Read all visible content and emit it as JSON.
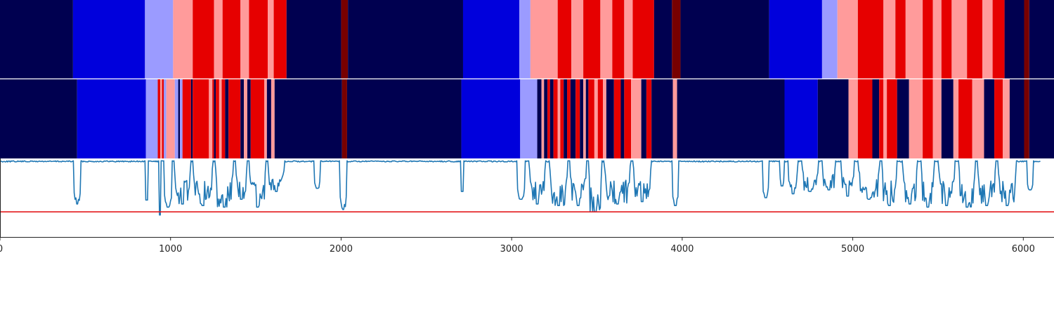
{
  "chart_data": {
    "type": "heatmap",
    "title": "",
    "xlabel": "",
    "ylabel": "",
    "xlim": [
      0,
      6180
    ],
    "xticks": [
      0,
      1000,
      2000,
      3000,
      4000,
      5000,
      6000
    ],
    "xtick_labels": [
      "0",
      "1000",
      "2000",
      "3000",
      "4000",
      "5000",
      "6000"
    ],
    "grid": false,
    "legend": "none",
    "colors": {
      "0": "#000050",
      "1": "#0000dc",
      "2": "#9b9bff",
      "3": "#ff9b9b",
      "4": "#e60000",
      "5": "#780000",
      "signal_line": "#1f77b4",
      "threshold_line": "#e31a1c",
      "panel_divider": "#ffffff",
      "axis": "#222222"
    },
    "strip_top": {
      "segments": [
        [
          0,
          428,
          0
        ],
        [
          428,
          850,
          1
        ],
        [
          850,
          1015,
          2
        ],
        [
          1015,
          1130,
          3
        ],
        [
          1130,
          1255,
          4
        ],
        [
          1255,
          1305,
          3
        ],
        [
          1305,
          1410,
          4
        ],
        [
          1410,
          1460,
          3
        ],
        [
          1460,
          1570,
          4
        ],
        [
          1570,
          1605,
          3
        ],
        [
          1605,
          1680,
          4
        ],
        [
          1680,
          2000,
          0
        ],
        [
          2000,
          2040,
          5
        ],
        [
          2040,
          2715,
          0
        ],
        [
          2715,
          3045,
          1
        ],
        [
          3045,
          3110,
          2
        ],
        [
          3110,
          3270,
          3
        ],
        [
          3270,
          3350,
          4
        ],
        [
          3350,
          3420,
          3
        ],
        [
          3420,
          3520,
          4
        ],
        [
          3520,
          3590,
          3
        ],
        [
          3590,
          3660,
          4
        ],
        [
          3660,
          3710,
          3
        ],
        [
          3710,
          3835,
          4
        ],
        [
          3835,
          3940,
          0
        ],
        [
          3940,
          3990,
          5
        ],
        [
          3990,
          4510,
          0
        ],
        [
          4510,
          4820,
          1
        ],
        [
          4820,
          4910,
          2
        ],
        [
          4910,
          5030,
          3
        ],
        [
          5030,
          5180,
          4
        ],
        [
          5180,
          5250,
          3
        ],
        [
          5250,
          5310,
          4
        ],
        [
          5310,
          5410,
          3
        ],
        [
          5410,
          5470,
          4
        ],
        [
          5470,
          5520,
          3
        ],
        [
          5520,
          5580,
          4
        ],
        [
          5580,
          5670,
          3
        ],
        [
          5670,
          5760,
          4
        ],
        [
          5760,
          5820,
          3
        ],
        [
          5820,
          5890,
          4
        ],
        [
          5890,
          6005,
          0
        ],
        [
          6005,
          6035,
          5
        ],
        [
          6035,
          6180,
          0
        ]
      ]
    },
    "strip_bottom": {
      "segments": [
        [
          0,
          452,
          0
        ],
        [
          452,
          855,
          1
        ],
        [
          855,
          925,
          2
        ],
        [
          925,
          940,
          4
        ],
        [
          940,
          950,
          3
        ],
        [
          950,
          960,
          4
        ],
        [
          960,
          975,
          2
        ],
        [
          975,
          1025,
          3
        ],
        [
          1025,
          1045,
          2
        ],
        [
          1045,
          1055,
          0
        ],
        [
          1055,
          1070,
          2
        ],
        [
          1070,
          1120,
          4
        ],
        [
          1120,
          1130,
          0
        ],
        [
          1130,
          1225,
          4
        ],
        [
          1225,
          1245,
          3
        ],
        [
          1245,
          1255,
          4
        ],
        [
          1255,
          1265,
          0
        ],
        [
          1265,
          1285,
          4
        ],
        [
          1285,
          1300,
          3
        ],
        [
          1300,
          1320,
          4
        ],
        [
          1320,
          1340,
          0
        ],
        [
          1340,
          1410,
          4
        ],
        [
          1410,
          1430,
          0
        ],
        [
          1430,
          1450,
          3
        ],
        [
          1450,
          1470,
          0
        ],
        [
          1470,
          1550,
          4
        ],
        [
          1550,
          1565,
          3
        ],
        [
          1565,
          1590,
          0
        ],
        [
          1590,
          1610,
          3
        ],
        [
          1610,
          2005,
          0
        ],
        [
          2005,
          2035,
          5
        ],
        [
          2035,
          2705,
          0
        ],
        [
          2705,
          3050,
          1
        ],
        [
          3050,
          3150,
          2
        ],
        [
          3150,
          3175,
          0
        ],
        [
          3175,
          3190,
          3
        ],
        [
          3190,
          3210,
          0
        ],
        [
          3210,
          3225,
          4
        ],
        [
          3225,
          3245,
          0
        ],
        [
          3245,
          3270,
          4
        ],
        [
          3270,
          3285,
          3
        ],
        [
          3285,
          3305,
          4
        ],
        [
          3305,
          3325,
          0
        ],
        [
          3325,
          3345,
          4
        ],
        [
          3345,
          3375,
          0
        ],
        [
          3375,
          3400,
          4
        ],
        [
          3400,
          3420,
          0
        ],
        [
          3420,
          3435,
          3
        ],
        [
          3435,
          3450,
          0
        ],
        [
          3450,
          3485,
          4
        ],
        [
          3485,
          3505,
          3
        ],
        [
          3505,
          3535,
          4
        ],
        [
          3535,
          3555,
          3
        ],
        [
          3555,
          3600,
          0
        ],
        [
          3600,
          3640,
          4
        ],
        [
          3640,
          3660,
          0
        ],
        [
          3660,
          3700,
          4
        ],
        [
          3700,
          3760,
          3
        ],
        [
          3760,
          3790,
          0
        ],
        [
          3790,
          3820,
          4
        ],
        [
          3820,
          3945,
          0
        ],
        [
          3945,
          3970,
          3
        ],
        [
          3970,
          4600,
          0
        ],
        [
          4600,
          4795,
          1
        ],
        [
          4795,
          4975,
          0
        ],
        [
          4975,
          5030,
          3
        ],
        [
          5030,
          5115,
          4
        ],
        [
          5115,
          5155,
          0
        ],
        [
          5155,
          5180,
          4
        ],
        [
          5180,
          5200,
          3
        ],
        [
          5200,
          5260,
          4
        ],
        [
          5260,
          5330,
          0
        ],
        [
          5330,
          5410,
          3
        ],
        [
          5410,
          5470,
          4
        ],
        [
          5470,
          5520,
          3
        ],
        [
          5520,
          5590,
          0
        ],
        [
          5590,
          5620,
          3
        ],
        [
          5620,
          5700,
          4
        ],
        [
          5700,
          5770,
          3
        ],
        [
          5770,
          5830,
          0
        ],
        [
          5830,
          5880,
          4
        ],
        [
          5880,
          5920,
          3
        ],
        [
          5920,
          6005,
          0
        ],
        [
          6005,
          6035,
          5
        ],
        [
          6035,
          6180,
          0
        ]
      ]
    },
    "line_panel": {
      "ylim": [
        0,
        1
      ],
      "baseline": 0.97,
      "threshold": 0.32,
      "dips": [
        [
          430,
          475,
          0.42
        ],
        [
          850,
          870,
          0.47
        ],
        [
          930,
          945,
          0.28
        ],
        [
          960,
          1010,
          0.38
        ],
        [
          1020,
          1120,
          0.42
        ],
        [
          1130,
          1250,
          0.4
        ],
        [
          1260,
          1370,
          0.38
        ],
        [
          1380,
          1450,
          0.48
        ],
        [
          1460,
          1560,
          0.38
        ],
        [
          1570,
          1670,
          0.58
        ],
        [
          1840,
          1880,
          0.62
        ],
        [
          1990,
          2035,
          0.35
        ],
        [
          2700,
          2720,
          0.58
        ],
        [
          3030,
          3080,
          0.48
        ],
        [
          3100,
          3200,
          0.42
        ],
        [
          3220,
          3330,
          0.4
        ],
        [
          3340,
          3440,
          0.4
        ],
        [
          3450,
          3530,
          0.32
        ],
        [
          3540,
          3700,
          0.42
        ],
        [
          3710,
          3820,
          0.45
        ],
        [
          3940,
          3980,
          0.4
        ],
        [
          4470,
          4510,
          0.5
        ],
        [
          4570,
          4600,
          0.65
        ],
        [
          4620,
          4680,
          0.55
        ],
        [
          4700,
          4800,
          0.58
        ],
        [
          4820,
          4900,
          0.6
        ],
        [
          4930,
          5010,
          0.52
        ],
        [
          5030,
          5160,
          0.48
        ],
        [
          5170,
          5260,
          0.4
        ],
        [
          5290,
          5380,
          0.42
        ],
        [
          5400,
          5480,
          0.38
        ],
        [
          5500,
          5600,
          0.4
        ],
        [
          5620,
          5720,
          0.38
        ],
        [
          5730,
          5840,
          0.4
        ],
        [
          5850,
          5960,
          0.4
        ],
        [
          6020,
          6060,
          0.6
        ]
      ]
    }
  }
}
